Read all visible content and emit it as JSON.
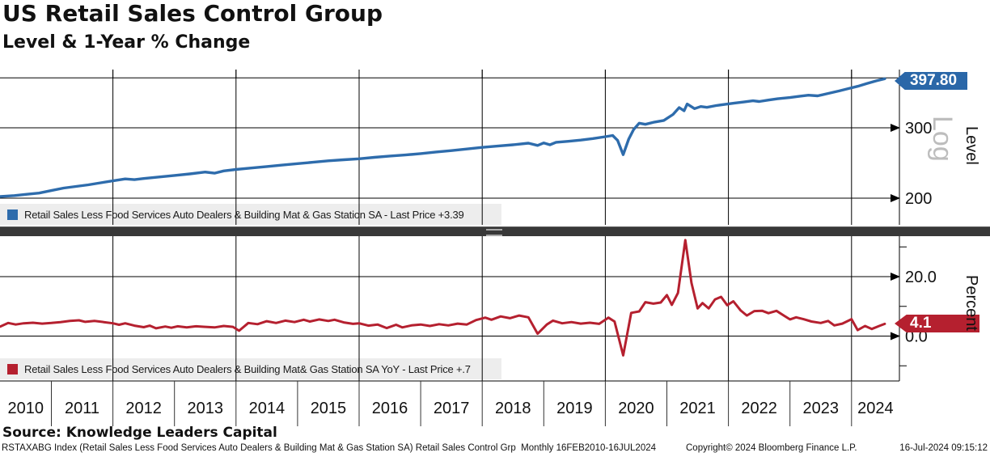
{
  "footer": {
    "source": "Source: Knowledge Leaders Capital",
    "left": "RSTAXABG Index (Retail Sales Less Food Services Auto Dealers & Building Mat & Gas Station SA) Retail Sales Control Grp  Monthly 16FEB2010-16JUL2024",
    "copyright": "Copyright© 2024 Bloomberg Finance L.P.",
    "timestamp": "16-Jul-2024 09:15:12"
  },
  "chart_data": {
    "type": "line",
    "title": "US Retail Sales Control Group",
    "subtitle": "Level & 1-Year % Change",
    "x_axis": {
      "years": [
        "2010",
        "2011",
        "2012",
        "2013",
        "2014",
        "2015",
        "2016",
        "2017",
        "2018",
        "2019",
        "2020",
        "2021",
        "2022",
        "2023",
        "2024"
      ],
      "gridline_years": [
        2012,
        2014,
        2016,
        2018,
        2020,
        2022,
        2024
      ],
      "range_note": "monthly data Feb 2010 - Jul 2024"
    },
    "panels": [
      {
        "name": "Level",
        "axis_label": "Level",
        "scale": "log",
        "scale_watermark": "Log",
        "axis_range": [
          172,
          420
        ],
        "gridlines_unlabeled": [
          400
        ],
        "ticks": [
          {
            "value": 300,
            "label": "300"
          },
          {
            "value": 200,
            "label": "200"
          }
        ],
        "minor_ticks": [],
        "badge": {
          "label": "397.80",
          "color": "#2a67a8"
        },
        "legend": {
          "swatch_color": "#2e6cac",
          "text": "Retail Sales Less Food Services Auto Dealers & Building Mat & Gas Station SA - Last Price +3.39"
        },
        "series": {
          "color": "#2e6cac",
          "points": [
            [
              0.17,
              202
            ],
            [
              0.4,
              203
            ],
            [
              0.6,
              204.5
            ],
            [
              0.8,
              206
            ],
            [
              1.0,
              209
            ],
            [
              1.2,
              212
            ],
            [
              1.4,
              214
            ],
            [
              1.6,
              216
            ],
            [
              1.8,
              218.5
            ],
            [
              2.0,
              221
            ],
            [
              2.2,
              223.5
            ],
            [
              2.35,
              222.5
            ],
            [
              2.5,
              224
            ],
            [
              2.75,
              226
            ],
            [
              3.0,
              228
            ],
            [
              3.25,
              230
            ],
            [
              3.5,
              232.5
            ],
            [
              3.65,
              231
            ],
            [
              3.8,
              234
            ],
            [
              4.0,
              236
            ],
            [
              4.25,
              238
            ],
            [
              4.5,
              240
            ],
            [
              4.75,
              242
            ],
            [
              5.0,
              244
            ],
            [
              5.25,
              246
            ],
            [
              5.5,
              248
            ],
            [
              5.75,
              249.5
            ],
            [
              6.0,
              251
            ],
            [
              6.25,
              253
            ],
            [
              6.5,
              255
            ],
            [
              6.75,
              256.5
            ],
            [
              7.0,
              258.5
            ],
            [
              7.25,
              261
            ],
            [
              7.5,
              263
            ],
            [
              7.75,
              265.5
            ],
            [
              8.0,
              268
            ],
            [
              8.25,
              270
            ],
            [
              8.5,
              272
            ],
            [
              8.75,
              274.5
            ],
            [
              8.9,
              271
            ],
            [
              9.0,
              275
            ],
            [
              9.1,
              272
            ],
            [
              9.2,
              276
            ],
            [
              9.4,
              277.5
            ],
            [
              9.6,
              279.5
            ],
            [
              9.8,
              282
            ],
            [
              10.0,
              285
            ],
            [
              10.12,
              287
            ],
            [
              10.2,
              279
            ],
            [
              10.29,
              257
            ],
            [
              10.38,
              281
            ],
            [
              10.46,
              297
            ],
            [
              10.55,
              308
            ],
            [
              10.65,
              306
            ],
            [
              10.8,
              310
            ],
            [
              10.95,
              313
            ],
            [
              11.1,
              324
            ],
            [
              11.2,
              337
            ],
            [
              11.28,
              331
            ],
            [
              11.33,
              344
            ],
            [
              11.45,
              335
            ],
            [
              11.55,
              339
            ],
            [
              11.65,
              337.5
            ],
            [
              11.8,
              341
            ],
            [
              11.95,
              343.5
            ],
            [
              12.1,
              346
            ],
            [
              12.25,
              348
            ],
            [
              12.4,
              350.5
            ],
            [
              12.5,
              349
            ],
            [
              12.65,
              352
            ],
            [
              12.8,
              354.5
            ],
            [
              13.0,
              357
            ],
            [
              13.15,
              359.5
            ],
            [
              13.3,
              362
            ],
            [
              13.45,
              360.5
            ],
            [
              13.6,
              365
            ],
            [
              13.8,
              371
            ],
            [
              13.95,
              376
            ],
            [
              14.1,
              381
            ],
            [
              14.25,
              387
            ],
            [
              14.4,
              393
            ],
            [
              14.54,
              397.8
            ]
          ]
        }
      },
      {
        "name": "Percent",
        "axis_label": "Percent",
        "scale": "linear",
        "axis_range": [
          -15.2,
          33.6
        ],
        "gridlines_unlabeled": [],
        "ticks": [
          {
            "value": 20,
            "label": "20.0"
          },
          {
            "value": 0,
            "label": "0.0"
          }
        ],
        "minor_ticks": [
          30,
          10,
          -10
        ],
        "badge": {
          "label": "4.1",
          "color": "#b5202f"
        },
        "legend": {
          "swatch_color": "#b5202f",
          "text": "Retail Sales Less Food Services Auto Dealers & Building Mat& Gas Station SA YoY - Last Price +.7"
        },
        "series": {
          "color": "#b5202f",
          "points": [
            [
              0.17,
              3.2
            ],
            [
              0.3,
              4.4
            ],
            [
              0.42,
              3.9
            ],
            [
              0.55,
              4.3
            ],
            [
              0.7,
              4.5
            ],
            [
              0.85,
              4.2
            ],
            [
              1.0,
              4.4
            ],
            [
              1.15,
              4.7
            ],
            [
              1.3,
              5.1
            ],
            [
              1.45,
              5.3
            ],
            [
              1.55,
              4.8
            ],
            [
              1.7,
              5.1
            ],
            [
              1.85,
              4.7
            ],
            [
              2.0,
              4.3
            ],
            [
              2.1,
              3.8
            ],
            [
              2.2,
              4.3
            ],
            [
              2.35,
              3.5
            ],
            [
              2.5,
              3.0
            ],
            [
              2.6,
              3.5
            ],
            [
              2.7,
              2.6
            ],
            [
              2.85,
              3.2
            ],
            [
              2.95,
              2.8
            ],
            [
              3.05,
              3.3
            ],
            [
              3.2,
              2.9
            ],
            [
              3.35,
              3.3
            ],
            [
              3.5,
              3.1
            ],
            [
              3.65,
              2.9
            ],
            [
              3.8,
              3.4
            ],
            [
              3.95,
              3.1
            ],
            [
              4.05,
              1.8
            ],
            [
              4.2,
              4.4
            ],
            [
              4.35,
              4.0
            ],
            [
              4.5,
              5.0
            ],
            [
              4.65,
              4.4
            ],
            [
              4.8,
              5.2
            ],
            [
              4.95,
              4.7
            ],
            [
              5.1,
              5.5
            ],
            [
              5.2,
              4.9
            ],
            [
              5.35,
              5.6
            ],
            [
              5.5,
              5.1
            ],
            [
              5.6,
              5.5
            ],
            [
              5.75,
              4.6
            ],
            [
              5.9,
              4.1
            ],
            [
              6.0,
              4.3
            ],
            [
              6.15,
              3.5
            ],
            [
              6.3,
              3.9
            ],
            [
              6.45,
              2.7
            ],
            [
              6.6,
              3.8
            ],
            [
              6.7,
              2.9
            ],
            [
              6.85,
              3.6
            ],
            [
              7.0,
              3.9
            ],
            [
              7.15,
              3.4
            ],
            [
              7.3,
              4.0
            ],
            [
              7.45,
              3.6
            ],
            [
              7.6,
              4.2
            ],
            [
              7.75,
              3.9
            ],
            [
              7.9,
              5.4
            ],
            [
              8.05,
              6.2
            ],
            [
              8.15,
              5.5
            ],
            [
              8.3,
              6.6
            ],
            [
              8.45,
              6.0
            ],
            [
              8.6,
              6.9
            ],
            [
              8.75,
              6.3
            ],
            [
              8.9,
              0.8
            ],
            [
              9.05,
              3.9
            ],
            [
              9.15,
              5.2
            ],
            [
              9.3,
              4.3
            ],
            [
              9.45,
              4.7
            ],
            [
              9.6,
              4.2
            ],
            [
              9.75,
              4.5
            ],
            [
              9.9,
              4.1
            ],
            [
              10.05,
              6.2
            ],
            [
              10.15,
              4.9
            ],
            [
              10.29,
              -6.5
            ],
            [
              10.42,
              7.8
            ],
            [
              10.55,
              8.3
            ],
            [
              10.65,
              11.4
            ],
            [
              10.78,
              10.9
            ],
            [
              10.9,
              11.3
            ],
            [
              11.0,
              13.8
            ],
            [
              11.08,
              10.5
            ],
            [
              11.18,
              14.5
            ],
            [
              11.3,
              32.3
            ],
            [
              11.4,
              17.9
            ],
            [
              11.5,
              9.3
            ],
            [
              11.58,
              11.1
            ],
            [
              11.68,
              9.3
            ],
            [
              11.78,
              12.3
            ],
            [
              11.88,
              13.2
            ],
            [
              11.98,
              10.4
            ],
            [
              12.08,
              11.7
            ],
            [
              12.2,
              8.6
            ],
            [
              12.3,
              6.9
            ],
            [
              12.42,
              8.4
            ],
            [
              12.55,
              8.5
            ],
            [
              12.65,
              7.7
            ],
            [
              12.78,
              8.5
            ],
            [
              12.9,
              6.9
            ],
            [
              13.0,
              5.6
            ],
            [
              13.1,
              6.3
            ],
            [
              13.22,
              5.7
            ],
            [
              13.35,
              4.9
            ],
            [
              13.5,
              4.4
            ],
            [
              13.62,
              5.1
            ],
            [
              13.72,
              3.6
            ],
            [
              13.85,
              4.2
            ],
            [
              14.0,
              5.7
            ],
            [
              14.1,
              2.0
            ],
            [
              14.22,
              3.4
            ],
            [
              14.33,
              2.4
            ],
            [
              14.45,
              3.4
            ],
            [
              14.54,
              4.1
            ]
          ]
        }
      }
    ]
  }
}
